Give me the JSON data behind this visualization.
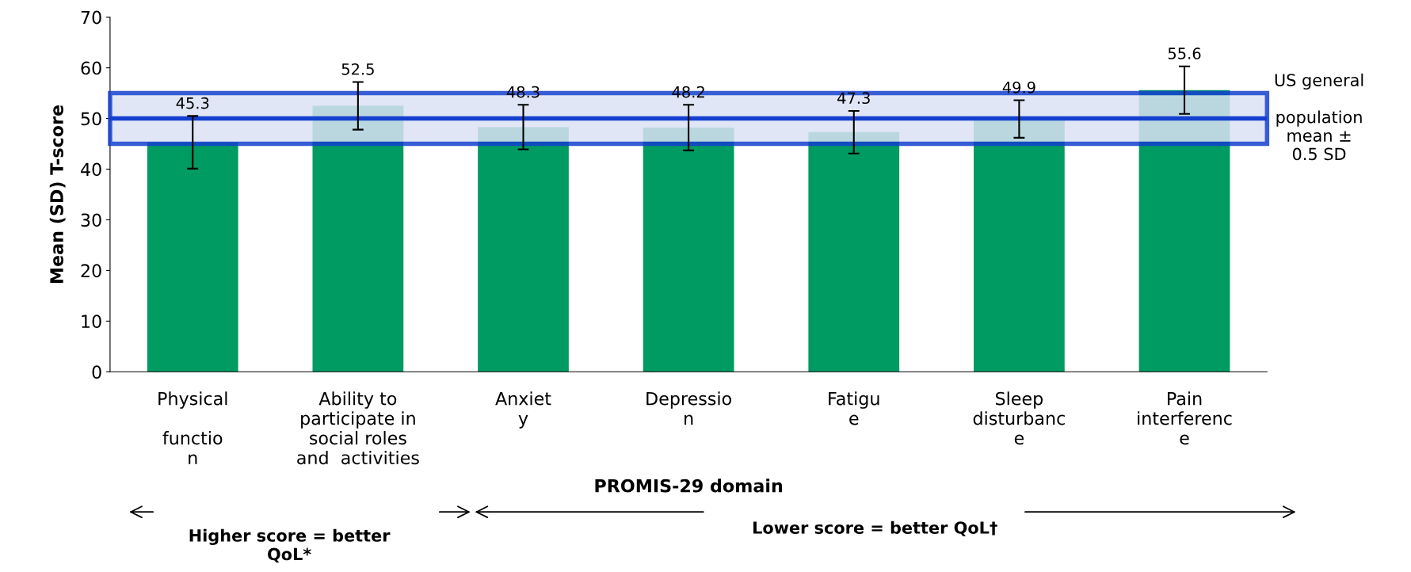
{
  "chart_data": {
    "type": "bar",
    "categories": [
      "Physical\n\nfunctio\nn",
      "Ability to\nparticipate in\nsocial roles\nand  activities",
      "Anxiet\ny",
      "Depressio\nn",
      "Fatigu\ne",
      "Sleep\ndisturbanc\ne",
      "Pain\ninterferenc\ne"
    ],
    "values": [
      45.3,
      52.5,
      48.3,
      48.2,
      47.3,
      49.9,
      55.6
    ],
    "errors": [
      5.2,
      4.7,
      4.4,
      4.5,
      4.2,
      3.7,
      4.7
    ],
    "color": "#009a63",
    "data_labels": true,
    "xlabel": "PROMIS-29 domain",
    "ylabel": "Mean (SD) T-score",
    "ylim": [
      0,
      70
    ],
    "yticks": [
      0,
      10,
      20,
      30,
      40,
      50,
      60,
      70
    ],
    "grid": false,
    "ref_lines": [
      {
        "axis": "y",
        "value": 50,
        "color": "#1440d0"
      }
    ],
    "bands": [
      {
        "axis": "y",
        "from": 45,
        "to": 55,
        "label": "US general\n\npopulation\nmean ±\n0.5 SD",
        "color": "#dbe2f5"
      }
    ],
    "annotations": [
      "Higher score = better\nQoL*",
      "Lower score = better QoL†"
    ]
  }
}
